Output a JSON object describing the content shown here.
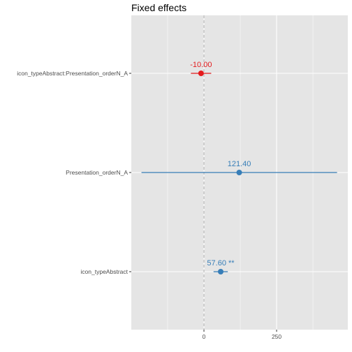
{
  "chart_data": {
    "type": "forest",
    "title": "Fixed effects",
    "xlabel": "",
    "ylabel": "",
    "xlim": [
      -250,
      495
    ],
    "x_ticks": [
      0,
      250
    ],
    "x_minor_ticks": [
      -125,
      125,
      375
    ],
    "reference_line": 0,
    "grid": true,
    "colors": {
      "positive": "#377eb8",
      "negative": "#e41a1c",
      "panel": "#e5e5e5",
      "gridline": "#ffffff",
      "reference": "#b3b3b3"
    },
    "terms": [
      {
        "term": "icon_typeAbstract:Presentation_orderN_A",
        "estimate": -10.0,
        "conf_low": -45,
        "conf_high": 25,
        "label": "-10.00",
        "sign": "negative"
      },
      {
        "term": "Presentation_orderN_A",
        "estimate": 121.4,
        "conf_low": -215,
        "conf_high": 458,
        "label": "121.40",
        "sign": "positive"
      },
      {
        "term": "icon_typeAbstract",
        "estimate": 57.6,
        "conf_low": 33,
        "conf_high": 82,
        "label": "57.60 **",
        "sign": "positive"
      }
    ]
  }
}
